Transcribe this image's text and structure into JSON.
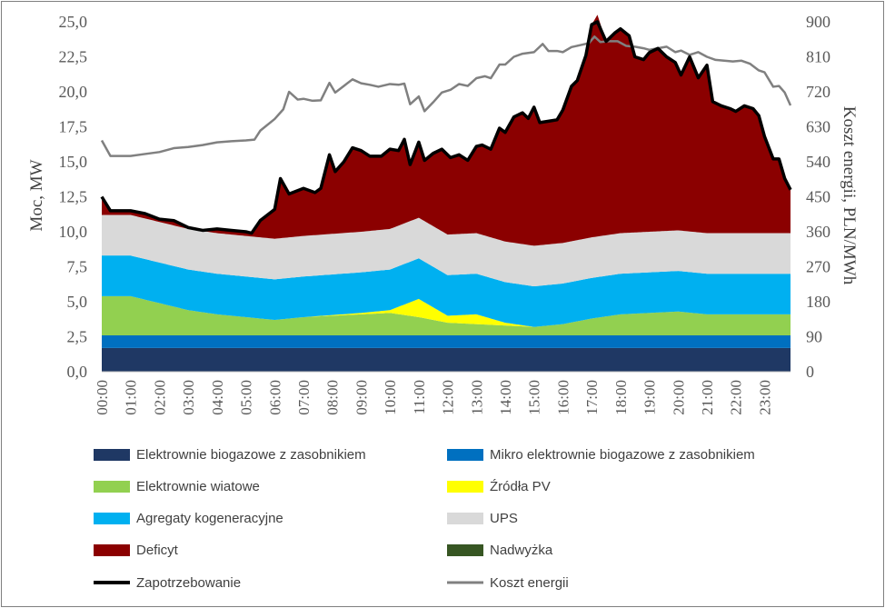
{
  "chart_data": {
    "type": "area",
    "x_unit": "hour",
    "x_ticks": [
      "00:00",
      "01:00",
      "02:00",
      "03:00",
      "04:00",
      "05:00",
      "06:00",
      "07:00",
      "08:00",
      "09:00",
      "10:00",
      "11:00",
      "12:00",
      "13:00",
      "14:00",
      "15:00",
      "16:00",
      "17:00",
      "18:00",
      "19:00",
      "20:00",
      "21:00",
      "22:00",
      "23:00"
    ],
    "ylabel": "Moc, MW",
    "ylim": [
      0,
      25
    ],
    "yticks": [
      "0,0",
      "2,5",
      "5,0",
      "7,5",
      "10,0",
      "12,5",
      "15,0",
      "17,5",
      "20,0",
      "22,5",
      "25,0"
    ],
    "ylabel_right": "Koszt energii, PLN/MWh",
    "ylim_right": [
      0,
      900
    ],
    "yticks_right": [
      "0",
      "90",
      "180",
      "270",
      "360",
      "450",
      "540",
      "630",
      "720",
      "810",
      "900"
    ],
    "grid": false,
    "legend_position": "bottom",
    "series": [
      {
        "name": "Elektrownie biogazowe z zasobnikiem",
        "kind": "stacked-area",
        "color": "#1f3864",
        "points": [
          [
            0,
            1.7
          ],
          [
            23.9,
            1.7
          ]
        ]
      },
      {
        "name": "Mikro elektrownie biogazowe z zasobnikiem",
        "kind": "stacked-area",
        "color": "#0070c0",
        "points": [
          [
            0,
            0.9
          ],
          [
            23.9,
            0.9
          ]
        ]
      },
      {
        "name": "Elektrownie wiatowe",
        "kind": "stacked-area",
        "color": "#92d050",
        "points": [
          [
            0,
            2.8
          ],
          [
            1,
            2.8
          ],
          [
            2,
            2.3
          ],
          [
            3,
            1.8
          ],
          [
            4,
            1.5
          ],
          [
            5,
            1.3
          ],
          [
            6,
            1.1
          ],
          [
            7,
            1.3
          ],
          [
            8,
            1.4
          ],
          [
            9,
            1.5
          ],
          [
            10,
            1.6
          ],
          [
            11,
            1.3
          ],
          [
            12,
            0.9
          ],
          [
            13,
            0.8
          ],
          [
            14,
            0.7
          ],
          [
            15,
            0.6
          ],
          [
            16,
            0.8
          ],
          [
            17,
            1.2
          ],
          [
            18,
            1.5
          ],
          [
            19,
            1.6
          ],
          [
            20,
            1.7
          ],
          [
            21,
            1.5
          ],
          [
            22,
            1.5
          ],
          [
            23,
            1.5
          ],
          [
            23.9,
            1.5
          ]
        ]
      },
      {
        "name": "Źródła PV",
        "kind": "stacked-area",
        "color": "#ffff00",
        "points": [
          [
            0,
            0
          ],
          [
            7,
            0
          ],
          [
            8,
            0.05
          ],
          [
            9,
            0.1
          ],
          [
            10,
            0.2
          ],
          [
            11,
            1.3
          ],
          [
            12,
            0.5
          ],
          [
            13,
            0.7
          ],
          [
            14,
            0.2
          ],
          [
            15,
            0
          ],
          [
            23.9,
            0
          ]
        ]
      },
      {
        "name": "Agregaty kogeneracyjne",
        "kind": "stacked-area",
        "color": "#00b0f0",
        "points": [
          [
            0,
            2.9
          ],
          [
            1,
            2.9
          ],
          [
            2,
            2.9
          ],
          [
            3,
            2.9
          ],
          [
            4,
            2.9
          ],
          [
            5,
            2.9
          ],
          [
            6,
            2.9
          ],
          [
            7,
            2.9
          ],
          [
            8,
            2.9
          ],
          [
            9,
            2.9
          ],
          [
            10,
            2.9
          ],
          [
            11,
            2.9
          ],
          [
            12,
            2.9
          ],
          [
            13,
            2.9
          ],
          [
            14,
            2.9
          ],
          [
            15,
            2.9
          ],
          [
            16,
            2.9
          ],
          [
            17,
            2.9
          ],
          [
            18,
            2.9
          ],
          [
            19,
            2.9
          ],
          [
            20,
            2.9
          ],
          [
            21,
            2.9
          ],
          [
            22,
            2.9
          ],
          [
            23,
            2.9
          ],
          [
            23.9,
            2.9
          ]
        ]
      },
      {
        "name": "UPS",
        "kind": "stacked-area",
        "color": "#d9d9d9",
        "points": [
          [
            0,
            2.9
          ],
          [
            1,
            2.9
          ],
          [
            2,
            2.9
          ],
          [
            3,
            2.9
          ],
          [
            4,
            2.9
          ],
          [
            5,
            2.9
          ],
          [
            6,
            2.9
          ],
          [
            7,
            2.9
          ],
          [
            8,
            2.9
          ],
          [
            9,
            2.9
          ],
          [
            10,
            2.9
          ],
          [
            11,
            2.9
          ],
          [
            12,
            2.9
          ],
          [
            13,
            2.9
          ],
          [
            14,
            2.9
          ],
          [
            15,
            2.9
          ],
          [
            16,
            2.9
          ],
          [
            17,
            2.9
          ],
          [
            18,
            2.9
          ],
          [
            19,
            2.9
          ],
          [
            20,
            2.9
          ],
          [
            21,
            2.9
          ],
          [
            22,
            2.9
          ],
          [
            23,
            2.9
          ],
          [
            23.9,
            2.9
          ]
        ]
      },
      {
        "name": "Deficyt",
        "kind": "fill-to-demand",
        "color": "#8b0000"
      },
      {
        "name": "Nadwyżka",
        "kind": "stacked-area",
        "color": "#375623",
        "points": []
      },
      {
        "name": "Zapotrzebowanie",
        "kind": "line",
        "axis": "left",
        "color": "#000000",
        "points": [
          [
            0,
            12.5
          ],
          [
            0.3,
            11.5
          ],
          [
            1,
            11.5
          ],
          [
            1.5,
            11.3
          ],
          [
            2,
            10.9
          ],
          [
            2.5,
            10.8
          ],
          [
            3,
            10.3
          ],
          [
            3.5,
            10.1
          ],
          [
            4,
            10.2
          ],
          [
            4.5,
            10.1
          ],
          [
            5,
            10.0
          ],
          [
            5.2,
            9.9
          ],
          [
            5.5,
            10.8
          ],
          [
            6,
            11.6
          ],
          [
            6.2,
            13.8
          ],
          [
            6.5,
            12.7
          ],
          [
            7,
            13.1
          ],
          [
            7.4,
            12.8
          ],
          [
            7.6,
            13.1
          ],
          [
            7.9,
            15.5
          ],
          [
            8.1,
            14.3
          ],
          [
            8.4,
            15.0
          ],
          [
            8.7,
            16.0
          ],
          [
            9,
            15.8
          ],
          [
            9.3,
            15.4
          ],
          [
            9.7,
            15.4
          ],
          [
            10,
            15.9
          ],
          [
            10.3,
            15.8
          ],
          [
            10.5,
            16.6
          ],
          [
            10.7,
            14.8
          ],
          [
            11,
            16.4
          ],
          [
            11.2,
            15.1
          ],
          [
            11.5,
            15.6
          ],
          [
            11.8,
            15.9
          ],
          [
            12.1,
            15.3
          ],
          [
            12.4,
            15.5
          ],
          [
            12.7,
            15.1
          ],
          [
            13,
            16.1
          ],
          [
            13.2,
            16.2
          ],
          [
            13.5,
            15.9
          ],
          [
            13.8,
            17.4
          ],
          [
            14,
            17.1
          ],
          [
            14.3,
            18.2
          ],
          [
            14.6,
            18.5
          ],
          [
            14.8,
            18.1
          ],
          [
            15,
            18.9
          ],
          [
            15.2,
            17.8
          ],
          [
            15.5,
            17.9
          ],
          [
            15.8,
            18.0
          ],
          [
            16,
            18.7
          ],
          [
            16.3,
            20.4
          ],
          [
            16.5,
            20.8
          ],
          [
            16.8,
            22.6
          ],
          [
            17,
            24.8
          ],
          [
            17.2,
            25.5
          ],
          [
            17.5,
            23.6
          ],
          [
            17.8,
            24.2
          ],
          [
            18,
            24.5
          ],
          [
            18.3,
            24.0
          ],
          [
            18.5,
            22.5
          ],
          [
            18.8,
            22.3
          ],
          [
            19,
            22.8
          ],
          [
            19.3,
            23.1
          ],
          [
            19.6,
            22.5
          ],
          [
            19.9,
            22.1
          ],
          [
            20.1,
            21.2
          ],
          [
            20.4,
            22.5
          ],
          [
            20.7,
            21.0
          ],
          [
            21,
            21.9
          ],
          [
            21.2,
            19.3
          ],
          [
            21.5,
            19.0
          ],
          [
            21.8,
            18.8
          ],
          [
            22,
            18.6
          ],
          [
            22.3,
            19.0
          ],
          [
            22.6,
            18.8
          ],
          [
            22.8,
            18.3
          ],
          [
            23,
            16.8
          ],
          [
            23.3,
            15.2
          ],
          [
            23.5,
            15.2
          ],
          [
            23.7,
            13.8
          ],
          [
            23.9,
            13.0
          ]
        ]
      },
      {
        "name": "Koszt energii",
        "kind": "line",
        "axis": "right",
        "color": "#808080",
        "points": [
          [
            0,
            595
          ],
          [
            0.3,
            555
          ],
          [
            1,
            555
          ],
          [
            1.5,
            560
          ],
          [
            2,
            565
          ],
          [
            2.5,
            575
          ],
          [
            3,
            578
          ],
          [
            3.5,
            583
          ],
          [
            4,
            590
          ],
          [
            4.5,
            593
          ],
          [
            5,
            595
          ],
          [
            5.3,
            597
          ],
          [
            5.5,
            620
          ],
          [
            6,
            650
          ],
          [
            6.3,
            675
          ],
          [
            6.5,
            720
          ],
          [
            6.8,
            700
          ],
          [
            7,
            702
          ],
          [
            7.3,
            697
          ],
          [
            7.6,
            698
          ],
          [
            7.9,
            743
          ],
          [
            8.1,
            718
          ],
          [
            8.4,
            735
          ],
          [
            8.7,
            752
          ],
          [
            9,
            742
          ],
          [
            9.3,
            738
          ],
          [
            9.6,
            733
          ],
          [
            10,
            740
          ],
          [
            10.3,
            738
          ],
          [
            10.5,
            741
          ],
          [
            10.7,
            688
          ],
          [
            11,
            708
          ],
          [
            11.2,
            670
          ],
          [
            11.5,
            693
          ],
          [
            11.8,
            718
          ],
          [
            12.1,
            725
          ],
          [
            12.4,
            740
          ],
          [
            12.7,
            735
          ],
          [
            13,
            755
          ],
          [
            13.3,
            760
          ],
          [
            13.5,
            755
          ],
          [
            13.8,
            790
          ],
          [
            14,
            790
          ],
          [
            14.3,
            810
          ],
          [
            14.6,
            818
          ],
          [
            15,
            822
          ],
          [
            15.3,
            843
          ],
          [
            15.5,
            825
          ],
          [
            15.8,
            825
          ],
          [
            16,
            822
          ],
          [
            16.3,
            835
          ],
          [
            16.6,
            840
          ],
          [
            16.9,
            845
          ],
          [
            17.1,
            862
          ],
          [
            17.3,
            848
          ],
          [
            17.6,
            850
          ],
          [
            17.9,
            850
          ],
          [
            18.2,
            838
          ],
          [
            18.5,
            836
          ],
          [
            18.8,
            832
          ],
          [
            19,
            828
          ],
          [
            19.3,
            832
          ],
          [
            19.6,
            836
          ],
          [
            19.9,
            822
          ],
          [
            20.1,
            826
          ],
          [
            20.4,
            815
          ],
          [
            20.7,
            822
          ],
          [
            21,
            810
          ],
          [
            21.3,
            802
          ],
          [
            21.6,
            800
          ],
          [
            21.9,
            798
          ],
          [
            22.2,
            800
          ],
          [
            22.5,
            792
          ],
          [
            22.8,
            775
          ],
          [
            23,
            770
          ],
          [
            23.3,
            733
          ],
          [
            23.5,
            735
          ],
          [
            23.7,
            718
          ],
          [
            23.9,
            685
          ]
        ]
      }
    ]
  }
}
